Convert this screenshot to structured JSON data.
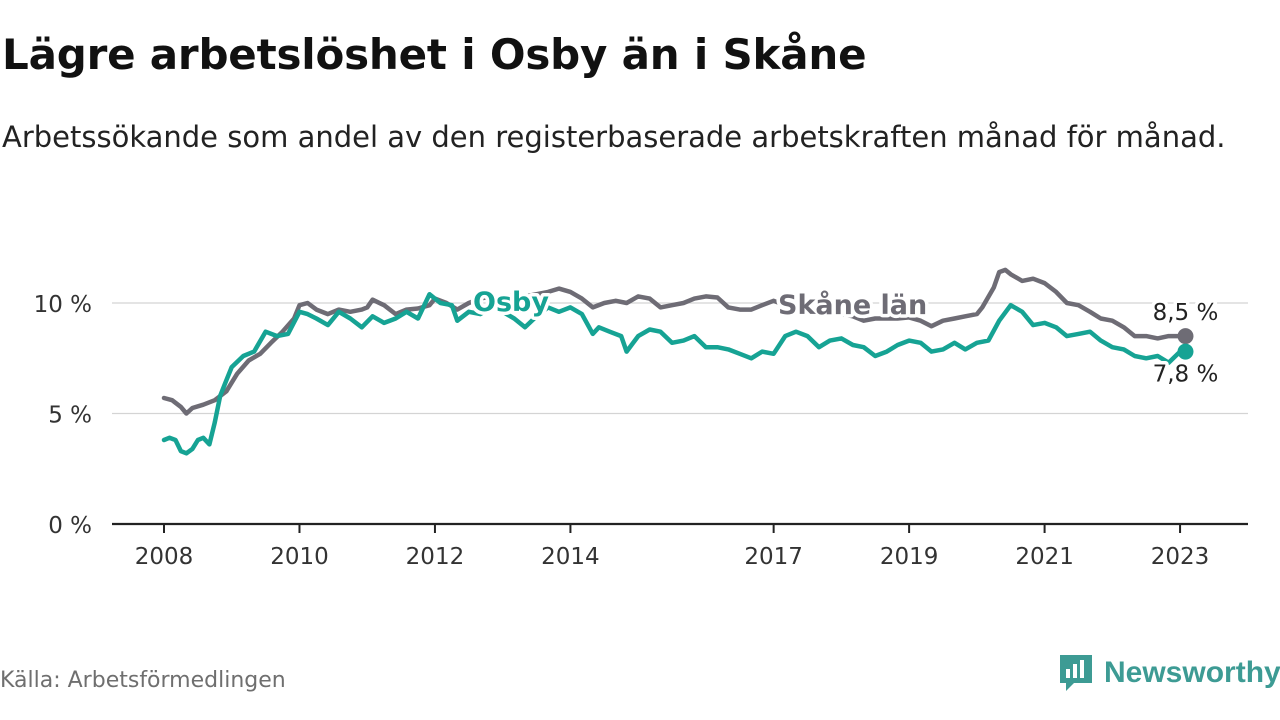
{
  "title": "Lägre arbetslöshet i Osby än i Skåne",
  "subtitle": "Arbetssökande som andel av den registerbaserade arbetskraften månad för månad.",
  "source": "Källa: Arbetsförmedlingen",
  "brand": {
    "name": "Newsworthy",
    "icon": "newsworthy-chart-logo-icon",
    "color": "#3d9b94"
  },
  "chart_data": {
    "type": "line",
    "title": "Lägre arbetslöshet i Osby än i Skåne",
    "xlabel": "",
    "ylabel": "",
    "xlim": [
      2008.0,
      2023.25
    ],
    "ylim": [
      0,
      11.5
    ],
    "grid": true,
    "legend": "inline labels",
    "x_ticks": [
      {
        "value": 2008.0,
        "label": "2008"
      },
      {
        "value": 2010.0,
        "label": "2010"
      },
      {
        "value": 2012.0,
        "label": "2012"
      },
      {
        "value": 2014.0,
        "label": "2014"
      },
      {
        "value": 2017.0,
        "label": "2017"
      },
      {
        "value": 2019.0,
        "label": "2019"
      },
      {
        "value": 2021.0,
        "label": "2021"
      },
      {
        "value": 2023.0,
        "label": "2023"
      }
    ],
    "y_ticks": [
      {
        "value": 0,
        "label": "0 %"
      },
      {
        "value": 5,
        "label": "5 %"
      },
      {
        "value": 10,
        "label": "10 %"
      }
    ],
    "series": [
      {
        "name": "Skåne län",
        "color": "#6e6c75",
        "end_label": "8,5 %",
        "points": [
          [
            2008.0,
            5.7
          ],
          [
            2008.12,
            5.6
          ],
          [
            2008.25,
            5.3
          ],
          [
            2008.33,
            5.0
          ],
          [
            2008.42,
            5.25
          ],
          [
            2008.58,
            5.4
          ],
          [
            2008.75,
            5.6
          ],
          [
            2008.92,
            6.0
          ],
          [
            2009.08,
            6.8
          ],
          [
            2009.25,
            7.4
          ],
          [
            2009.42,
            7.7
          ],
          [
            2009.58,
            8.2
          ],
          [
            2009.75,
            8.7
          ],
          [
            2009.92,
            9.3
          ],
          [
            2010.0,
            9.9
          ],
          [
            2010.12,
            10.0
          ],
          [
            2010.25,
            9.7
          ],
          [
            2010.42,
            9.5
          ],
          [
            2010.58,
            9.7
          ],
          [
            2010.75,
            9.6
          ],
          [
            2010.92,
            9.7
          ],
          [
            2011.0,
            9.8
          ],
          [
            2011.08,
            10.15
          ],
          [
            2011.25,
            9.9
          ],
          [
            2011.42,
            9.5
          ],
          [
            2011.58,
            9.7
          ],
          [
            2011.75,
            9.75
          ],
          [
            2011.92,
            9.9
          ],
          [
            2012.0,
            10.2
          ],
          [
            2012.17,
            10.0
          ],
          [
            2012.33,
            9.7
          ],
          [
            2012.5,
            10.0
          ],
          [
            2012.67,
            10.2
          ],
          [
            2012.83,
            10.3
          ],
          [
            2013.0,
            10.1
          ],
          [
            2013.17,
            10.4
          ],
          [
            2013.33,
            10.3
          ],
          [
            2013.5,
            10.4
          ],
          [
            2013.67,
            10.5
          ],
          [
            2013.83,
            10.65
          ],
          [
            2014.0,
            10.5
          ],
          [
            2014.17,
            10.2
          ],
          [
            2014.33,
            9.8
          ],
          [
            2014.5,
            10.0
          ],
          [
            2014.67,
            10.1
          ],
          [
            2014.83,
            10.0
          ],
          [
            2015.0,
            10.3
          ],
          [
            2015.17,
            10.2
          ],
          [
            2015.33,
            9.8
          ],
          [
            2015.5,
            9.9
          ],
          [
            2015.67,
            10.0
          ],
          [
            2015.83,
            10.2
          ],
          [
            2016.0,
            10.3
          ],
          [
            2016.17,
            10.25
          ],
          [
            2016.33,
            9.8
          ],
          [
            2016.5,
            9.7
          ],
          [
            2016.67,
            9.7
          ],
          [
            2016.83,
            9.9
          ],
          [
            2017.0,
            10.1
          ],
          [
            2017.17,
            9.9
          ],
          [
            2017.33,
            9.7
          ],
          [
            2017.5,
            9.6
          ],
          [
            2017.67,
            9.55
          ],
          [
            2017.83,
            9.6
          ],
          [
            2018.0,
            9.5
          ],
          [
            2018.17,
            9.4
          ],
          [
            2018.33,
            9.2
          ],
          [
            2018.5,
            9.3
          ],
          [
            2018.67,
            9.3
          ],
          [
            2018.83,
            9.3
          ],
          [
            2019.0,
            9.35
          ],
          [
            2019.17,
            9.2
          ],
          [
            2019.33,
            8.95
          ],
          [
            2019.5,
            9.2
          ],
          [
            2019.67,
            9.3
          ],
          [
            2019.83,
            9.4
          ],
          [
            2020.0,
            9.5
          ],
          [
            2020.08,
            9.8
          ],
          [
            2020.25,
            10.7
          ],
          [
            2020.33,
            11.4
          ],
          [
            2020.42,
            11.5
          ],
          [
            2020.5,
            11.3
          ],
          [
            2020.67,
            11.0
          ],
          [
            2020.83,
            11.1
          ],
          [
            2021.0,
            10.9
          ],
          [
            2021.17,
            10.5
          ],
          [
            2021.33,
            10.0
          ],
          [
            2021.5,
            9.9
          ],
          [
            2021.67,
            9.6
          ],
          [
            2021.83,
            9.3
          ],
          [
            2022.0,
            9.2
          ],
          [
            2022.17,
            8.9
          ],
          [
            2022.33,
            8.5
          ],
          [
            2022.5,
            8.5
          ],
          [
            2022.67,
            8.4
          ],
          [
            2022.83,
            8.5
          ],
          [
            2023.0,
            8.5
          ],
          [
            2023.08,
            8.5
          ]
        ]
      },
      {
        "name": "Osby",
        "color": "#16a394",
        "end_label": "7,8 %",
        "points": [
          [
            2008.0,
            3.8
          ],
          [
            2008.08,
            3.9
          ],
          [
            2008.17,
            3.8
          ],
          [
            2008.25,
            3.3
          ],
          [
            2008.33,
            3.2
          ],
          [
            2008.42,
            3.4
          ],
          [
            2008.5,
            3.8
          ],
          [
            2008.58,
            3.9
          ],
          [
            2008.67,
            3.6
          ],
          [
            2008.75,
            4.6
          ],
          [
            2008.83,
            5.8
          ],
          [
            2008.92,
            6.5
          ],
          [
            2009.0,
            7.1
          ],
          [
            2009.17,
            7.6
          ],
          [
            2009.33,
            7.8
          ],
          [
            2009.5,
            8.7
          ],
          [
            2009.67,
            8.5
          ],
          [
            2009.83,
            8.6
          ],
          [
            2010.0,
            9.6
          ],
          [
            2010.12,
            9.5
          ],
          [
            2010.25,
            9.3
          ],
          [
            2010.42,
            9.0
          ],
          [
            2010.58,
            9.6
          ],
          [
            2010.75,
            9.3
          ],
          [
            2010.92,
            8.9
          ],
          [
            2011.08,
            9.4
          ],
          [
            2011.25,
            9.1
          ],
          [
            2011.42,
            9.3
          ],
          [
            2011.58,
            9.6
          ],
          [
            2011.75,
            9.3
          ],
          [
            2011.92,
            10.4
          ],
          [
            2012.08,
            10.0
          ],
          [
            2012.25,
            9.9
          ],
          [
            2012.33,
            9.2
          ],
          [
            2012.5,
            9.6
          ],
          [
            2012.67,
            9.5
          ],
          [
            2012.83,
            9.8
          ],
          [
            2013.0,
            9.6
          ],
          [
            2013.17,
            9.3
          ],
          [
            2013.33,
            8.9
          ],
          [
            2013.5,
            9.4
          ],
          [
            2013.67,
            9.8
          ],
          [
            2013.83,
            9.6
          ],
          [
            2014.0,
            9.8
          ],
          [
            2014.17,
            9.5
          ],
          [
            2014.33,
            8.6
          ],
          [
            2014.42,
            8.9
          ],
          [
            2014.58,
            8.7
          ],
          [
            2014.75,
            8.5
          ],
          [
            2014.83,
            7.8
          ],
          [
            2015.0,
            8.5
          ],
          [
            2015.17,
            8.8
          ],
          [
            2015.33,
            8.7
          ],
          [
            2015.5,
            8.2
          ],
          [
            2015.67,
            8.3
          ],
          [
            2015.83,
            8.5
          ],
          [
            2016.0,
            8.0
          ],
          [
            2016.17,
            8.0
          ],
          [
            2016.33,
            7.9
          ],
          [
            2016.5,
            7.7
          ],
          [
            2016.67,
            7.5
          ],
          [
            2016.83,
            7.8
          ],
          [
            2017.0,
            7.7
          ],
          [
            2017.17,
            8.5
          ],
          [
            2017.33,
            8.7
          ],
          [
            2017.5,
            8.5
          ],
          [
            2017.67,
            8.0
          ],
          [
            2017.83,
            8.3
          ],
          [
            2018.0,
            8.4
          ],
          [
            2018.17,
            8.1
          ],
          [
            2018.33,
            8.0
          ],
          [
            2018.5,
            7.6
          ],
          [
            2018.67,
            7.8
          ],
          [
            2018.83,
            8.1
          ],
          [
            2019.0,
            8.3
          ],
          [
            2019.17,
            8.2
          ],
          [
            2019.33,
            7.8
          ],
          [
            2019.5,
            7.9
          ],
          [
            2019.67,
            8.2
          ],
          [
            2019.83,
            7.9
          ],
          [
            2020.0,
            8.2
          ],
          [
            2020.17,
            8.3
          ],
          [
            2020.33,
            9.2
          ],
          [
            2020.5,
            9.9
          ],
          [
            2020.67,
            9.6
          ],
          [
            2020.83,
            9.0
          ],
          [
            2021.0,
            9.1
          ],
          [
            2021.17,
            8.9
          ],
          [
            2021.33,
            8.5
          ],
          [
            2021.5,
            8.6
          ],
          [
            2021.67,
            8.7
          ],
          [
            2021.83,
            8.3
          ],
          [
            2022.0,
            8.0
          ],
          [
            2022.17,
            7.9
          ],
          [
            2022.33,
            7.6
          ],
          [
            2022.5,
            7.5
          ],
          [
            2022.67,
            7.6
          ],
          [
            2022.83,
            7.3
          ],
          [
            2023.0,
            7.8
          ],
          [
            2023.08,
            7.8
          ]
        ]
      }
    ]
  }
}
